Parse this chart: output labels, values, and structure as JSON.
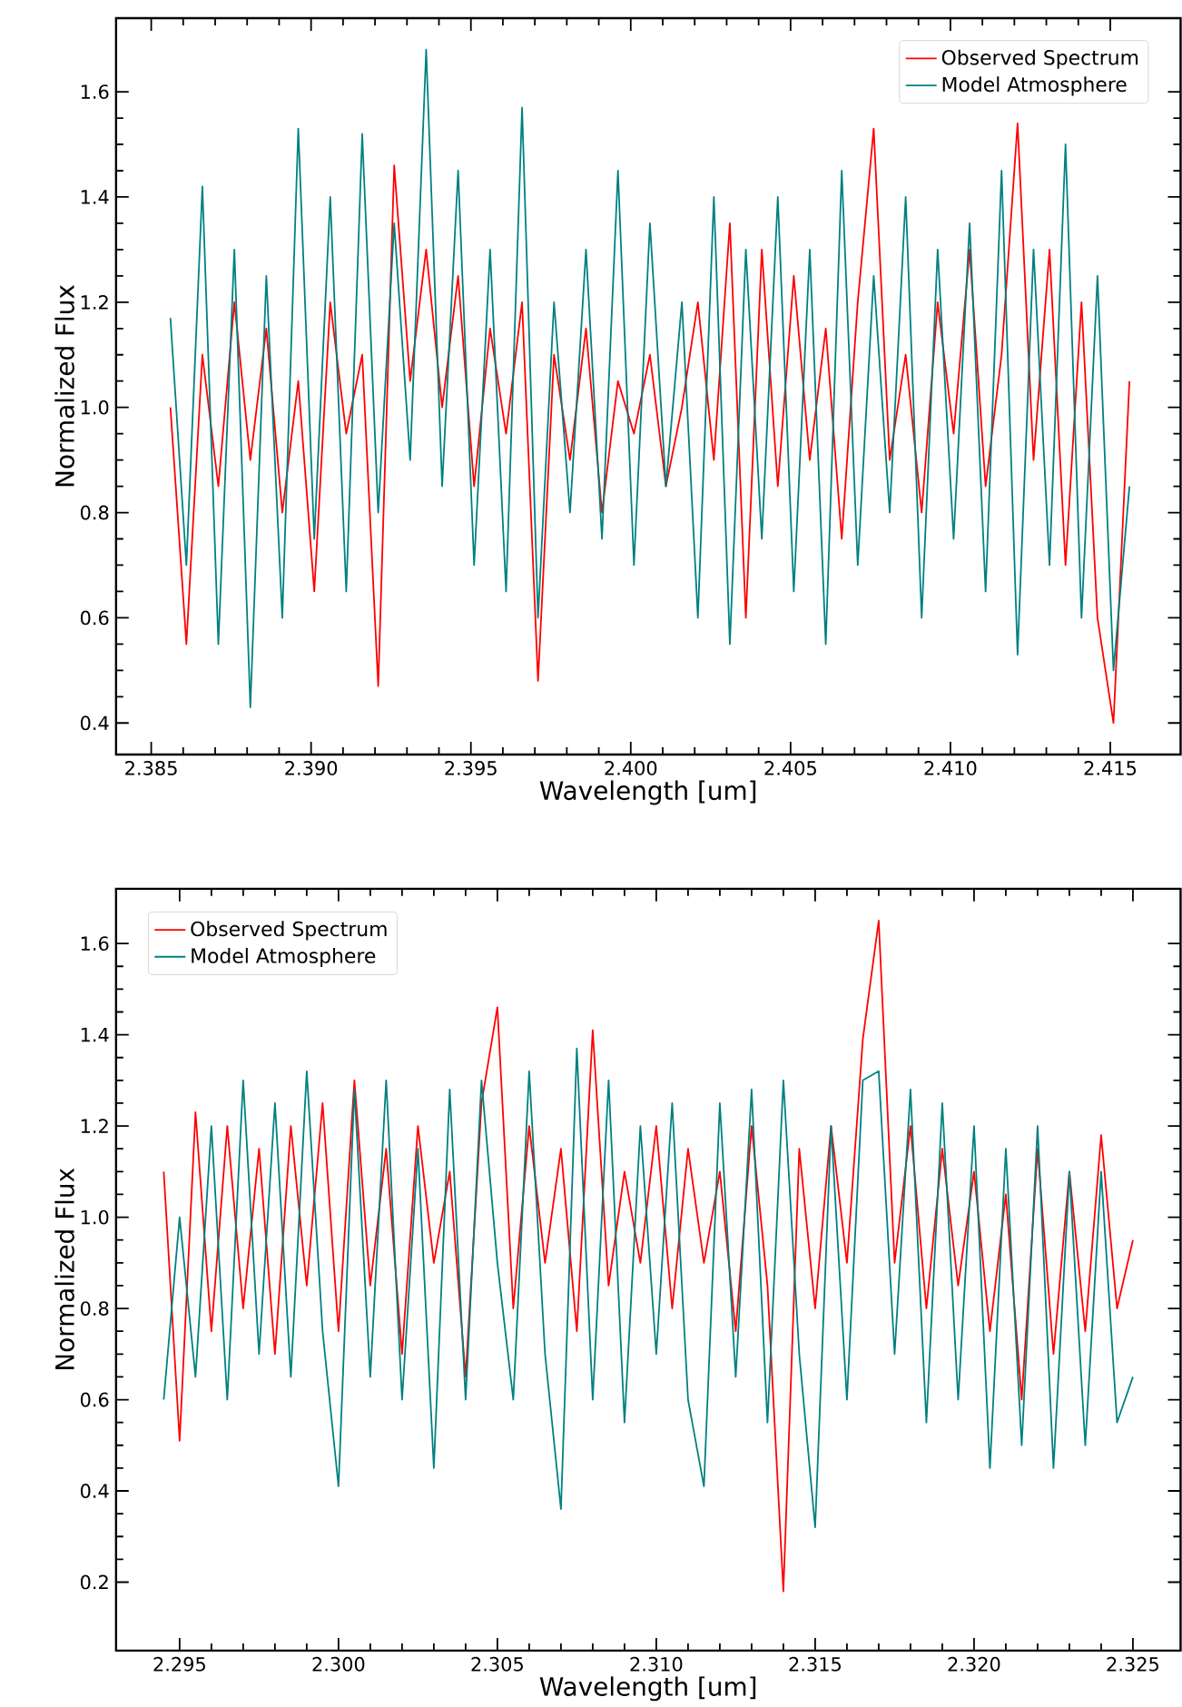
{
  "chart_data": [
    {
      "type": "line",
      "xlabel": "Wavelength [um]",
      "ylabel": "Normalized Flux",
      "legend": "top right",
      "xlim": [
        2.3839,
        2.4172
      ],
      "ylim": [
        0.34,
        1.74
      ],
      "xticks": [
        {
          "value": 2.385,
          "label": "2.385"
        },
        {
          "value": 2.39,
          "label": "2.390"
        },
        {
          "value": 2.395,
          "label": "2.395"
        },
        {
          "value": 2.4,
          "label": "2.400"
        },
        {
          "value": 2.405,
          "label": "2.405"
        },
        {
          "value": 2.41,
          "label": "2.410"
        },
        {
          "value": 2.415,
          "label": "2.415"
        }
      ],
      "yticks": [
        {
          "value": 0.4,
          "label": "0.4"
        },
        {
          "value": 0.6,
          "label": "0.6"
        },
        {
          "value": 0.8,
          "label": "0.8"
        },
        {
          "value": 1.0,
          "label": "1.0"
        },
        {
          "value": 1.2,
          "label": "1.2"
        },
        {
          "value": 1.4,
          "label": "1.4"
        },
        {
          "value": 1.6,
          "label": "1.6"
        }
      ],
      "x": [
        2.3856,
        2.3861,
        2.3866,
        2.3871,
        2.3876,
        2.3881,
        2.3886,
        2.3891,
        2.3896,
        2.3901,
        2.3906,
        2.3911,
        2.3916,
        2.3921,
        2.3926,
        2.3931,
        2.3936,
        2.3941,
        2.3946,
        2.3951,
        2.3956,
        2.3961,
        2.3966,
        2.3971,
        2.3976,
        2.3981,
        2.3986,
        2.3991,
        2.3996,
        2.4001,
        2.4006,
        2.4011,
        2.4016,
        2.4021,
        2.4026,
        2.4031,
        2.4036,
        2.4041,
        2.4046,
        2.4051,
        2.4056,
        2.4061,
        2.4066,
        2.4071,
        2.4076,
        2.4081,
        2.4086,
        2.4091,
        2.4096,
        2.4101,
        2.4106,
        2.4111,
        2.4116,
        2.4121,
        2.4126,
        2.4131,
        2.4136,
        2.4141,
        2.4146,
        2.4151,
        2.4156
      ],
      "series": [
        {
          "name": "Observed Spectrum",
          "color": "#ff0000",
          "values": [
            1.0,
            0.55,
            1.1,
            0.85,
            1.2,
            0.9,
            1.15,
            0.8,
            1.05,
            0.65,
            1.2,
            0.95,
            1.1,
            0.47,
            1.46,
            1.05,
            1.3,
            1.0,
            1.25,
            0.85,
            1.15,
            0.95,
            1.2,
            0.48,
            1.1,
            0.9,
            1.15,
            0.8,
            1.05,
            0.95,
            1.1,
            0.85,
            1.0,
            1.2,
            0.9,
            1.35,
            0.6,
            1.3,
            0.85,
            1.25,
            0.9,
            1.15,
            0.75,
            1.2,
            1.53,
            0.9,
            1.1,
            0.8,
            1.2,
            0.95,
            1.3,
            0.85,
            1.1,
            1.54,
            0.9,
            1.3,
            0.7,
            1.2,
            0.6,
            0.4,
            1.05
          ]
        },
        {
          "name": "Model Atmosphere",
          "color": "#008080",
          "values": [
            1.17,
            0.7,
            1.42,
            0.55,
            1.3,
            0.43,
            1.25,
            0.6,
            1.53,
            0.75,
            1.4,
            0.65,
            1.52,
            0.8,
            1.35,
            0.9,
            1.68,
            0.85,
            1.45,
            0.7,
            1.3,
            0.65,
            1.57,
            0.6,
            1.2,
            0.8,
            1.3,
            0.75,
            1.45,
            0.7,
            1.35,
            0.85,
            1.2,
            0.6,
            1.4,
            0.55,
            1.3,
            0.75,
            1.4,
            0.65,
            1.3,
            0.55,
            1.45,
            0.7,
            1.25,
            0.8,
            1.4,
            0.6,
            1.3,
            0.75,
            1.35,
            0.65,
            1.45,
            0.53,
            1.3,
            0.7,
            1.5,
            0.6,
            1.25,
            0.5,
            0.85
          ]
        }
      ]
    },
    {
      "type": "line",
      "xlabel": "Wavelength [um]",
      "ylabel": "Normalized Flux",
      "legend": "top left",
      "xlim": [
        2.293,
        2.3265
      ],
      "ylim": [
        0.05,
        1.72
      ],
      "xticks": [
        {
          "value": 2.295,
          "label": "2.295"
        },
        {
          "value": 2.3,
          "label": "2.300"
        },
        {
          "value": 2.305,
          "label": "2.305"
        },
        {
          "value": 2.31,
          "label": "2.310"
        },
        {
          "value": 2.315,
          "label": "2.315"
        },
        {
          "value": 2.32,
          "label": "2.320"
        },
        {
          "value": 2.325,
          "label": "2.325"
        }
      ],
      "yticks": [
        {
          "value": 0.2,
          "label": "0.2"
        },
        {
          "value": 0.4,
          "label": "0.4"
        },
        {
          "value": 0.6,
          "label": "0.6"
        },
        {
          "value": 0.8,
          "label": "0.8"
        },
        {
          "value": 1.0,
          "label": "1.0"
        },
        {
          "value": 1.2,
          "label": "1.2"
        },
        {
          "value": 1.4,
          "label": "1.4"
        },
        {
          "value": 1.6,
          "label": "1.6"
        }
      ],
      "x": [
        2.2945,
        2.295,
        2.2955,
        2.296,
        2.2965,
        2.297,
        2.2975,
        2.298,
        2.2985,
        2.299,
        2.2995,
        2.3,
        2.3005,
        2.301,
        2.3015,
        2.302,
        2.3025,
        2.303,
        2.3035,
        2.304,
        2.3045,
        2.305,
        2.3055,
        2.306,
        2.3065,
        2.307,
        2.3075,
        2.308,
        2.3085,
        2.309,
        2.3095,
        2.31,
        2.3105,
        2.311,
        2.3115,
        2.312,
        2.3125,
        2.313,
        2.3135,
        2.314,
        2.3145,
        2.315,
        2.3155,
        2.316,
        2.3165,
        2.317,
        2.3175,
        2.318,
        2.3185,
        2.319,
        2.3195,
        2.32,
        2.3205,
        2.321,
        2.3215,
        2.322,
        2.3225,
        2.323,
        2.3235,
        2.324,
        2.3245,
        2.325
      ],
      "series": [
        {
          "name": "Observed Spectrum",
          "color": "#ff0000",
          "values": [
            1.1,
            0.51,
            1.23,
            0.75,
            1.2,
            0.8,
            1.15,
            0.7,
            1.2,
            0.85,
            1.25,
            0.75,
            1.3,
            0.85,
            1.15,
            0.7,
            1.2,
            0.9,
            1.1,
            0.65,
            1.25,
            1.46,
            0.8,
            1.2,
            0.9,
            1.15,
            0.75,
            1.41,
            0.85,
            1.1,
            0.9,
            1.2,
            0.8,
            1.15,
            0.9,
            1.1,
            0.75,
            1.2,
            0.85,
            0.18,
            1.15,
            0.8,
            1.2,
            0.9,
            1.39,
            1.65,
            0.9,
            1.2,
            0.8,
            1.15,
            0.85,
            1.1,
            0.75,
            1.05,
            0.6,
            1.15,
            0.7,
            1.1,
            0.75,
            1.18,
            0.8,
            0.95
          ]
        },
        {
          "name": "Model Atmosphere",
          "color": "#008080",
          "values": [
            0.6,
            1.0,
            0.65,
            1.2,
            0.6,
            1.3,
            0.7,
            1.25,
            0.65,
            1.32,
            0.75,
            0.41,
            1.28,
            0.65,
            1.3,
            0.6,
            1.15,
            0.45,
            1.28,
            0.6,
            1.3,
            0.9,
            0.6,
            1.32,
            0.7,
            0.36,
            1.37,
            0.6,
            1.3,
            0.55,
            1.2,
            0.7,
            1.25,
            0.6,
            0.41,
            1.25,
            0.65,
            1.28,
            0.55,
            1.3,
            0.7,
            0.32,
            1.2,
            0.6,
            1.3,
            1.32,
            0.7,
            1.28,
            0.55,
            1.25,
            0.6,
            1.2,
            0.45,
            1.15,
            0.5,
            1.2,
            0.45,
            1.1,
            0.5,
            1.1,
            0.55,
            0.65
          ]
        }
      ]
    }
  ]
}
